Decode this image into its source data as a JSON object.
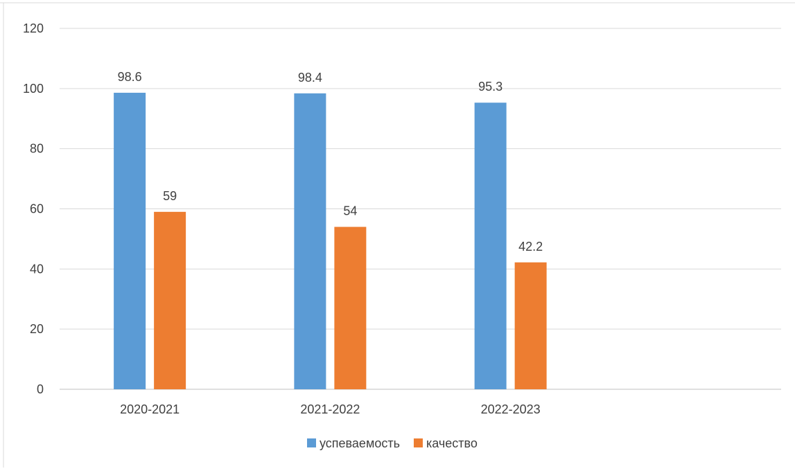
{
  "chart_data": {
    "type": "bar",
    "title": "",
    "xlabel": "",
    "ylabel": "",
    "categories": [
      "2020-2021",
      "2021-2022",
      "2022-2023",
      ""
    ],
    "series": [
      {
        "name": "успеваемость",
        "values": [
          98.6,
          98.4,
          95.3,
          null
        ],
        "color": "#5B9BD5"
      },
      {
        "name": "качество",
        "values": [
          59,
          54,
          42.2,
          null
        ],
        "color": "#ED7D31"
      }
    ],
    "ylim": [
      0,
      120
    ],
    "yticks": [
      0,
      20,
      40,
      60,
      80,
      100,
      120
    ],
    "grid": true,
    "legend": "bottom",
    "data_labels": true
  }
}
